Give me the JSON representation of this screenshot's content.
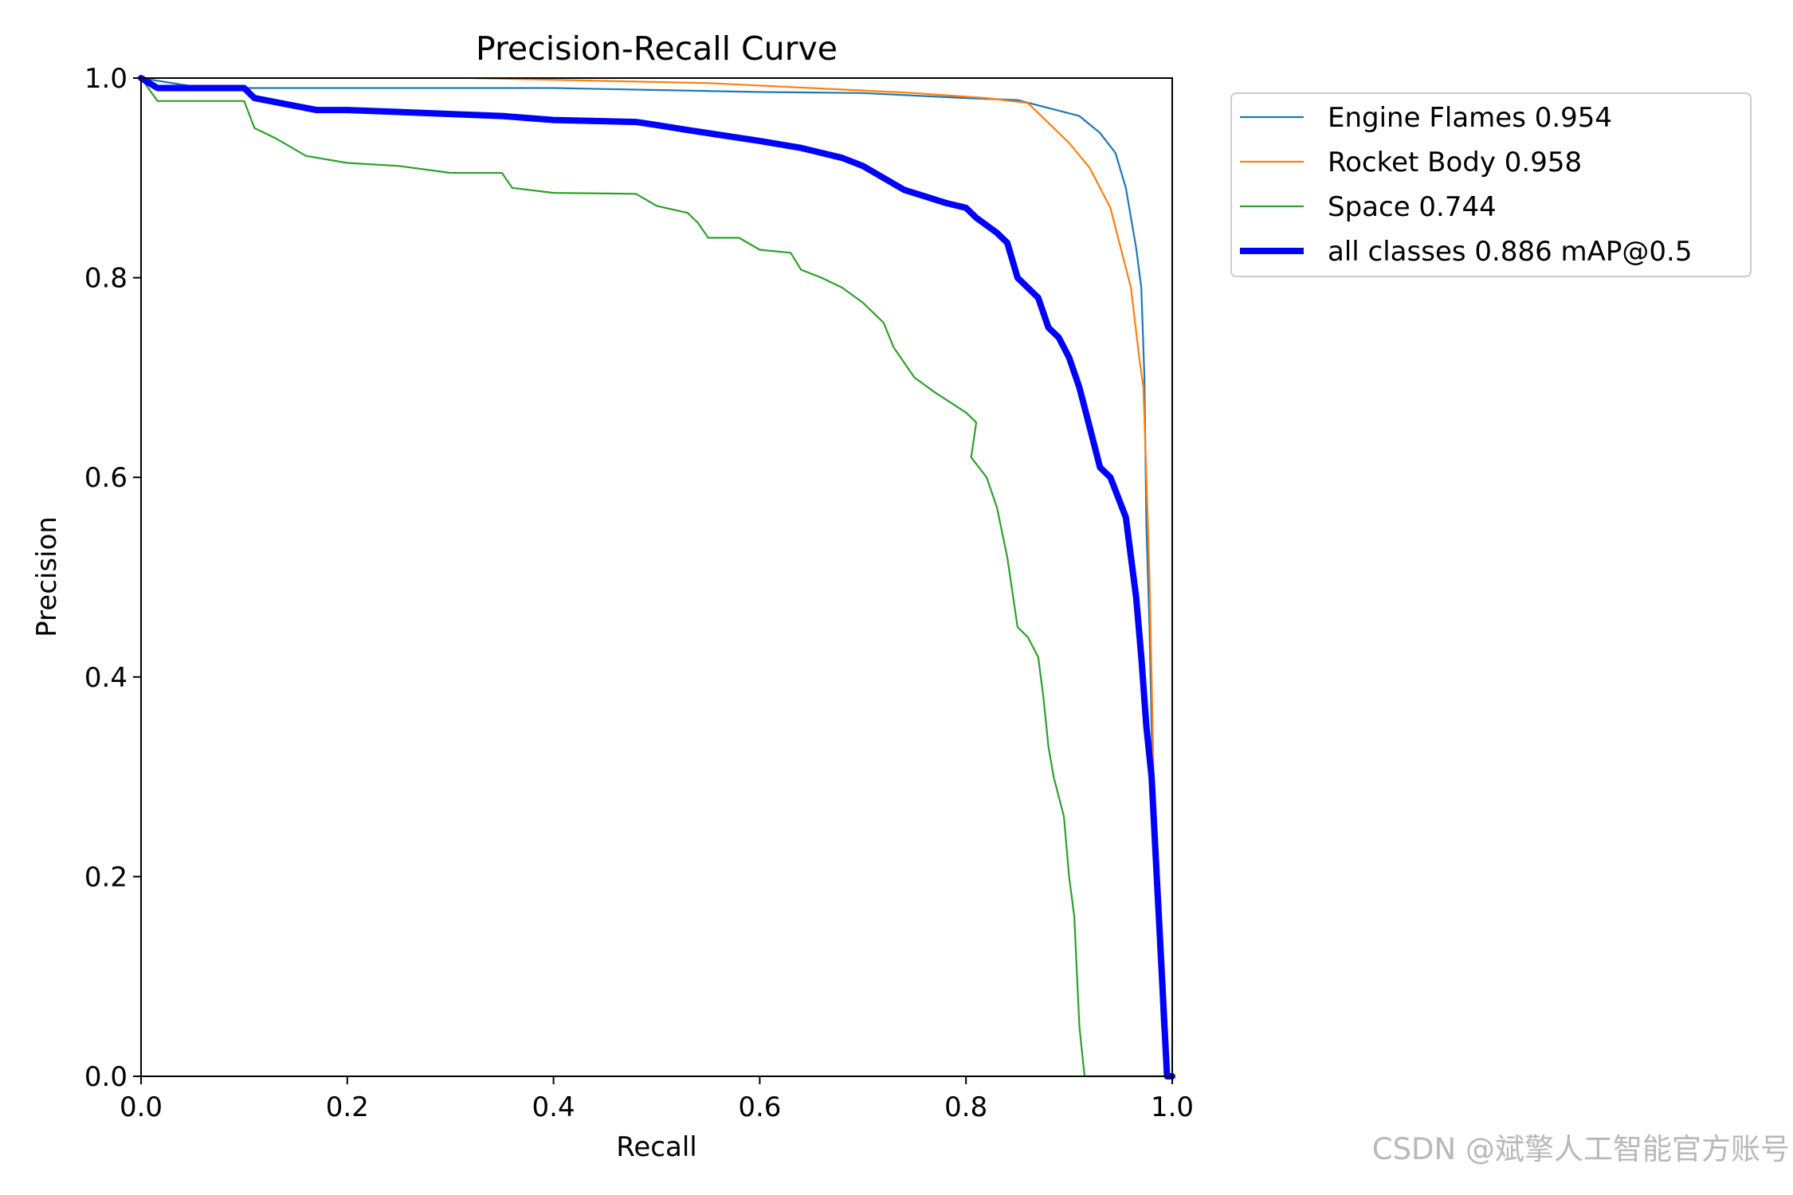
{
  "chart_data": {
    "type": "line",
    "title": "Precision-Recall Curve",
    "xlabel": "Recall",
    "ylabel": "Precision",
    "xlim": [
      0.0,
      1.0
    ],
    "ylim": [
      0.0,
      1.0
    ],
    "x_ticks": [
      "0.0",
      "0.2",
      "0.4",
      "0.6",
      "0.8",
      "1.0"
    ],
    "y_ticks": [
      "0.0",
      "0.2",
      "0.4",
      "0.6",
      "0.8",
      "1.0"
    ],
    "grid": false,
    "legend_position": "outside-top-right",
    "series": [
      {
        "name": "Engine Flames 0.954",
        "color": "#1f77b4",
        "line": "thin",
        "points": [
          [
            0.0,
            1.0
          ],
          [
            0.06,
            0.99
          ],
          [
            0.2,
            0.99
          ],
          [
            0.4,
            0.99
          ],
          [
            0.5,
            0.988
          ],
          [
            0.6,
            0.986
          ],
          [
            0.7,
            0.985
          ],
          [
            0.8,
            0.98
          ],
          [
            0.85,
            0.978
          ],
          [
            0.88,
            0.97
          ],
          [
            0.91,
            0.962
          ],
          [
            0.93,
            0.945
          ],
          [
            0.945,
            0.925
          ],
          [
            0.955,
            0.89
          ],
          [
            0.965,
            0.83
          ],
          [
            0.97,
            0.79
          ],
          [
            0.973,
            0.7
          ],
          [
            0.975,
            0.55
          ],
          [
            0.978,
            0.45
          ],
          [
            0.981,
            0.3
          ],
          [
            0.986,
            0.15
          ],
          [
            0.99,
            0.05
          ],
          [
            0.995,
            0.0
          ]
        ]
      },
      {
        "name": "Rocket Body 0.958",
        "color": "#ff7f0e",
        "line": "thin",
        "points": [
          [
            0.32,
            1.0
          ],
          [
            0.55,
            0.995
          ],
          [
            0.65,
            0.99
          ],
          [
            0.75,
            0.985
          ],
          [
            0.82,
            0.98
          ],
          [
            0.86,
            0.975
          ],
          [
            0.875,
            0.96
          ],
          [
            0.9,
            0.935
          ],
          [
            0.92,
            0.91
          ],
          [
            0.93,
            0.89
          ],
          [
            0.94,
            0.87
          ],
          [
            0.95,
            0.83
          ],
          [
            0.96,
            0.79
          ],
          [
            0.968,
            0.72
          ],
          [
            0.972,
            0.69
          ],
          [
            0.975,
            0.6
          ],
          [
            0.978,
            0.5
          ],
          [
            0.98,
            0.4
          ],
          [
            0.982,
            0.3
          ],
          [
            0.985,
            0.2
          ],
          [
            0.99,
            0.1
          ],
          [
            0.995,
            0.0
          ]
        ]
      },
      {
        "name": "Space 0.744",
        "color": "#2ca02c",
        "line": "thin",
        "points": [
          [
            0.0,
            1.0
          ],
          [
            0.016,
            0.977
          ],
          [
            0.1,
            0.977
          ],
          [
            0.11,
            0.95
          ],
          [
            0.13,
            0.94
          ],
          [
            0.16,
            0.922
          ],
          [
            0.2,
            0.915
          ],
          [
            0.25,
            0.912
          ],
          [
            0.3,
            0.905
          ],
          [
            0.35,
            0.905
          ],
          [
            0.36,
            0.89
          ],
          [
            0.4,
            0.885
          ],
          [
            0.48,
            0.884
          ],
          [
            0.5,
            0.872
          ],
          [
            0.53,
            0.865
          ],
          [
            0.54,
            0.855
          ],
          [
            0.55,
            0.84
          ],
          [
            0.58,
            0.84
          ],
          [
            0.6,
            0.828
          ],
          [
            0.63,
            0.825
          ],
          [
            0.64,
            0.808
          ],
          [
            0.66,
            0.8
          ],
          [
            0.68,
            0.79
          ],
          [
            0.7,
            0.775
          ],
          [
            0.72,
            0.755
          ],
          [
            0.73,
            0.73
          ],
          [
            0.75,
            0.7
          ],
          [
            0.77,
            0.685
          ],
          [
            0.8,
            0.665
          ],
          [
            0.81,
            0.655
          ],
          [
            0.805,
            0.62
          ],
          [
            0.82,
            0.6
          ],
          [
            0.83,
            0.57
          ],
          [
            0.84,
            0.52
          ],
          [
            0.85,
            0.45
          ],
          [
            0.86,
            0.44
          ],
          [
            0.87,
            0.42
          ],
          [
            0.875,
            0.38
          ],
          [
            0.88,
            0.33
          ],
          [
            0.885,
            0.3
          ],
          [
            0.895,
            0.26
          ],
          [
            0.9,
            0.2
          ],
          [
            0.905,
            0.16
          ],
          [
            0.91,
            0.05
          ],
          [
            0.915,
            0.0
          ],
          [
            0.995,
            0.0
          ]
        ]
      },
      {
        "name": "all classes 0.886 mAP@0.5",
        "color": "#0000ff",
        "line": "thick",
        "points": [
          [
            0.0,
            1.0
          ],
          [
            0.016,
            0.99
          ],
          [
            0.1,
            0.99
          ],
          [
            0.11,
            0.98
          ],
          [
            0.15,
            0.972
          ],
          [
            0.17,
            0.968
          ],
          [
            0.2,
            0.968
          ],
          [
            0.3,
            0.964
          ],
          [
            0.35,
            0.962
          ],
          [
            0.4,
            0.958
          ],
          [
            0.48,
            0.956
          ],
          [
            0.5,
            0.953
          ],
          [
            0.53,
            0.948
          ],
          [
            0.6,
            0.937
          ],
          [
            0.64,
            0.93
          ],
          [
            0.68,
            0.92
          ],
          [
            0.7,
            0.912
          ],
          [
            0.72,
            0.9
          ],
          [
            0.74,
            0.888
          ],
          [
            0.78,
            0.875
          ],
          [
            0.8,
            0.87
          ],
          [
            0.81,
            0.86
          ],
          [
            0.83,
            0.845
          ],
          [
            0.84,
            0.835
          ],
          [
            0.85,
            0.8
          ],
          [
            0.87,
            0.78
          ],
          [
            0.88,
            0.75
          ],
          [
            0.89,
            0.74
          ],
          [
            0.9,
            0.72
          ],
          [
            0.91,
            0.69
          ],
          [
            0.92,
            0.65
          ],
          [
            0.93,
            0.61
          ],
          [
            0.94,
            0.6
          ],
          [
            0.955,
            0.56
          ],
          [
            0.96,
            0.52
          ],
          [
            0.965,
            0.48
          ],
          [
            0.97,
            0.42
          ],
          [
            0.975,
            0.35
          ],
          [
            0.98,
            0.3
          ],
          [
            0.985,
            0.2
          ],
          [
            0.99,
            0.1
          ],
          [
            0.995,
            0.0
          ],
          [
            1.0,
            0.0
          ]
        ]
      }
    ]
  },
  "watermark": "CSDN @斌擎人工智能官方账号"
}
